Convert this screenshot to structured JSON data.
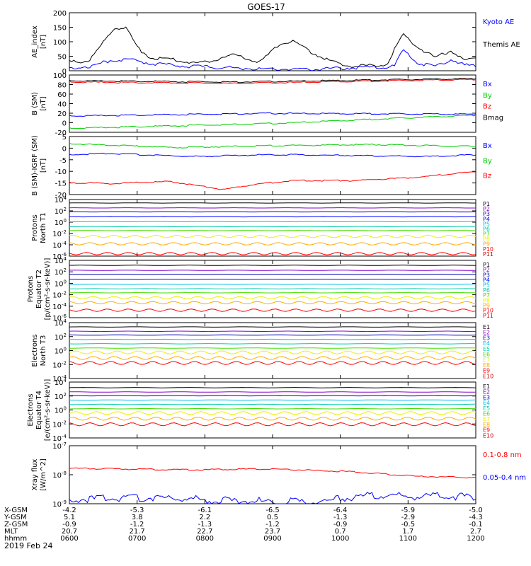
{
  "title": "GOES-17",
  "date": "2019 Feb 24",
  "colors": {
    "blue": "#0000ff",
    "green": "#00cc00",
    "red": "#ff0000",
    "black": "#000000",
    "purple": "#8800cc",
    "darkblue": "#0000aa",
    "cyan": "#00bbee",
    "teal": "#00ccaa",
    "lime": "#44dd00",
    "yellow": "#eeee00",
    "orange": "#ffaa00",
    "darkred": "#cc0000"
  },
  "chart_data": [
    {
      "type": "line",
      "id": "ae",
      "ylabel": [
        "AE_index",
        "[nT]"
      ],
      "yticks": [
        "200",
        "150",
        "100",
        "50",
        "0"
      ],
      "ylim": [
        0,
        200
      ],
      "legend": [
        {
          "label": "Kyoto AE",
          "color": "#0000ff"
        },
        {
          "label": "Themis AE",
          "color": "#000000"
        }
      ],
      "series": [
        {
          "name": "Themis AE",
          "color": "#000000",
          "x": [
            0,
            0.05,
            0.09,
            0.11,
            0.14,
            0.17,
            0.2,
            0.25,
            0.32,
            0.4,
            0.47,
            0.52,
            0.55,
            0.6,
            0.65,
            0.7,
            0.78,
            0.82,
            0.86,
            0.9,
            0.94,
            0.97,
            1.0
          ],
          "y": [
            30,
            35,
            110,
            150,
            145,
            75,
            45,
            40,
            25,
            55,
            30,
            95,
            100,
            60,
            30,
            15,
            20,
            125,
            80,
            45,
            70,
            35,
            40
          ]
        },
        {
          "name": "Kyoto AE",
          "color": "#0000ff",
          "x": [
            0,
            0.05,
            0.1,
            0.14,
            0.2,
            0.3,
            0.4,
            0.5,
            0.6,
            0.7,
            0.8,
            0.82,
            0.86,
            0.9,
            0.94,
            0.97,
            1.0
          ],
          "y": [
            10,
            15,
            35,
            40,
            25,
            15,
            10,
            5,
            5,
            10,
            15,
            70,
            25,
            15,
            40,
            20,
            15
          ]
        }
      ]
    },
    {
      "type": "line",
      "id": "bsm",
      "ylabel": [
        "B (SM)",
        "[nT]"
      ],
      "yticks": [
        "100",
        "80",
        "60",
        "40",
        "20",
        "0",
        "-20"
      ],
      "ylim": [
        -25,
        105
      ],
      "legend": [
        {
          "label": "Bx",
          "color": "#0000ff"
        },
        {
          "label": "By",
          "color": "#00cc00"
        },
        {
          "label": "Bz",
          "color": "#ff0000"
        },
        {
          "label": "Bmag",
          "color": "#000000"
        }
      ],
      "series": [
        {
          "name": "Bmag",
          "color": "#000000",
          "x": [
            0,
            0.4,
            1.0
          ],
          "y": [
            92,
            89,
            97
          ]
        },
        {
          "name": "Bz",
          "color": "#ff0000",
          "x": [
            0,
            0.4,
            1.0
          ],
          "y": [
            89,
            86,
            95
          ]
        },
        {
          "name": "Bx",
          "color": "#0000ff",
          "x": [
            0,
            0.5,
            1.0
          ],
          "y": [
            12,
            18,
            16
          ]
        },
        {
          "name": "By",
          "color": "#00cc00",
          "x": [
            0,
            0.5,
            1.0
          ],
          "y": [
            -16,
            -5,
            14
          ]
        }
      ]
    },
    {
      "type": "line",
      "id": "bigrf",
      "ylabel": [
        "B (SM)-IGRF (SM)",
        "[nT]"
      ],
      "yticks": [
        "5",
        "0",
        "-5",
        "-10",
        "-15",
        "-20"
      ],
      "ylim": [
        -22,
        7
      ],
      "legend": [
        {
          "label": "Bx",
          "color": "#0000ff"
        },
        {
          "label": "By",
          "color": "#00cc00"
        },
        {
          "label": "Bz",
          "color": "#ff0000"
        }
      ],
      "series": [
        {
          "name": "By",
          "color": "#00cc00",
          "x": [
            0,
            0.25,
            0.5,
            0.75,
            1.0
          ],
          "y": [
            3.5,
            1.5,
            2.5,
            3,
            2
          ]
        },
        {
          "name": "Bx",
          "color": "#0000ff",
          "x": [
            0,
            0.1,
            0.3,
            0.5,
            0.7,
            0.9,
            1.0
          ],
          "y": [
            -2,
            -1.5,
            -3,
            -2,
            -2.5,
            -3,
            -2
          ]
        },
        {
          "name": "Bz",
          "color": "#ff0000",
          "x": [
            0,
            0.1,
            0.25,
            0.38,
            0.45,
            0.55,
            0.7,
            0.85,
            1.0
          ],
          "y": [
            -16,
            -16.5,
            -15.5,
            -19.5,
            -17,
            -15,
            -15,
            -13.5,
            -10.5
          ]
        }
      ]
    },
    {
      "type": "line",
      "id": "pn",
      "ylabel": [
        "Protons",
        "North T1"
      ],
      "yticks": [
        "10^4",
        "10^2",
        "10^0",
        "10^-2",
        "10^-4",
        "10^-6"
      ],
      "ylim": [
        -7,
        4.5
      ],
      "legend": [
        {
          "label": "P1",
          "color": "#000000"
        },
        {
          "label": "P2",
          "color": "#8800cc"
        },
        {
          "label": "P3",
          "color": "#0000aa"
        },
        {
          "label": "P4",
          "color": "#0000ff"
        },
        {
          "label": "P5",
          "color": "#00bbee"
        },
        {
          "label": "P6",
          "color": "#00ccaa"
        },
        {
          "label": "P7",
          "color": "#44dd00"
        },
        {
          "label": "P8",
          "color": "#eeee00"
        },
        {
          "label": "P9",
          "color": "#ffaa00"
        },
        {
          "label": "P10",
          "color": "#ff0000"
        },
        {
          "label": "P11",
          "color": "#cc0000"
        }
      ],
      "levels": [
        3.8,
        2.8,
        2.0,
        1.0,
        0.0,
        -1.0,
        -1.8,
        -3.0,
        -4.5,
        -6.5
      ]
    },
    {
      "type": "line",
      "id": "pe",
      "ylabel": [
        "Protons",
        "Equator T2",
        "[p/(cm²-s-sr-keV)]"
      ],
      "yticks": [
        "10^4",
        "10^2",
        "10^0",
        "10^-2",
        "10^-4",
        "10^-6"
      ],
      "ylim": [
        -7,
        4.5
      ],
      "legend": [
        {
          "label": "P1",
          "color": "#000000"
        },
        {
          "label": "P2",
          "color": "#8800cc"
        },
        {
          "label": "P3",
          "color": "#0000aa"
        },
        {
          "label": "P4",
          "color": "#0000ff"
        },
        {
          "label": "P5",
          "color": "#00bbee"
        },
        {
          "label": "P6",
          "color": "#00ccaa"
        },
        {
          "label": "P7",
          "color": "#44dd00"
        },
        {
          "label": "P8",
          "color": "#eeee00"
        },
        {
          "label": "P9",
          "color": "#ffaa00"
        },
        {
          "label": "P10",
          "color": "#ff0000"
        },
        {
          "label": "P11",
          "color": "#cc0000"
        }
      ],
      "levels": [
        3.5,
        2.5,
        1.7,
        0.7,
        -0.3,
        -1.2,
        -2.0,
        -3.0,
        -4.0,
        -5.5
      ]
    },
    {
      "type": "line",
      "id": "en",
      "ylabel": [
        "Electrons",
        "North T3"
      ],
      "yticks": [
        "10^4",
        "10^2",
        "10^0",
        "10^-2",
        "10^-4"
      ],
      "ylim": [
        -4.5,
        4.5
      ],
      "legend": [
        {
          "label": "E1",
          "color": "#000000"
        },
        {
          "label": "E2",
          "color": "#8800cc"
        },
        {
          "label": "E3",
          "color": "#0000aa"
        },
        {
          "label": "E4",
          "color": "#00bbee"
        },
        {
          "label": "E5",
          "color": "#00ccaa"
        },
        {
          "label": "E6",
          "color": "#44dd00"
        },
        {
          "label": "E7",
          "color": "#eeee00"
        },
        {
          "label": "E8",
          "color": "#ffaa00"
        },
        {
          "label": "E9",
          "color": "#ff0000"
        },
        {
          "label": "E10",
          "color": "#cc0000"
        }
      ],
      "levels": [
        3.8,
        3.1,
        2.5,
        1.8,
        1.1,
        0.4,
        -0.3,
        -1.2,
        -2.0
      ]
    },
    {
      "type": "line",
      "id": "ee",
      "ylabel": [
        "Electrons",
        "Equator T4",
        "[e/(cm²-s-sr-keV)]"
      ],
      "yticks": [
        "10^4",
        "10^2",
        "10^0",
        "10^-2",
        "10^-4"
      ],
      "ylim": [
        -4.5,
        4.5
      ],
      "legend": [
        {
          "label": "E1",
          "color": "#000000"
        },
        {
          "label": "E2",
          "color": "#8800cc"
        },
        {
          "label": "E3",
          "color": "#0000aa"
        },
        {
          "label": "E4",
          "color": "#00bbee"
        },
        {
          "label": "E5",
          "color": "#00ccaa"
        },
        {
          "label": "E6",
          "color": "#44dd00"
        },
        {
          "label": "E7",
          "color": "#eeee00"
        },
        {
          "label": "E8",
          "color": "#ffaa00"
        },
        {
          "label": "E9",
          "color": "#ff0000"
        },
        {
          "label": "E10",
          "color": "#cc0000"
        }
      ],
      "levels": [
        3.6,
        2.9,
        2.3,
        1.6,
        0.9,
        0.2,
        -0.5,
        -1.4,
        -2.3
      ]
    },
    {
      "type": "line",
      "id": "xray",
      "ylabel": [
        "Xray flux",
        "[W/m^2]"
      ],
      "yticks": [
        "10^-7",
        "10^-8",
        "10^-9"
      ],
      "ylim": [
        -9,
        -7
      ],
      "legend": [
        {
          "label": "0.1-0.8 nm",
          "color": "#ff0000"
        },
        {
          "label": "0.05-0.4 nm",
          "color": "#0000ff"
        }
      ],
      "series": [
        {
          "name": "0.1-0.8 nm",
          "color": "#ff0000",
          "x": [
            0,
            0.3,
            0.5,
            0.7,
            0.85,
            1.0
          ],
          "y": [
            -7.78,
            -7.83,
            -7.8,
            -7.9,
            -8.05,
            -8.1
          ]
        },
        {
          "name": "0.05-0.4 nm",
          "color": "#0000ff",
          "x": [
            0,
            0.2,
            0.4,
            0.6,
            0.75,
            0.85,
            1.0
          ],
          "y": [
            -8.85,
            -8.8,
            -8.9,
            -8.95,
            -8.7,
            -8.75,
            -8.75
          ]
        }
      ]
    }
  ],
  "x_axis": {
    "row_labels": [
      "X-GSM",
      "Y-GSM",
      "Z-GSM",
      "MLT",
      "hhmm"
    ],
    "columns": [
      [
        "-4.2",
        "5.1",
        "-0.9",
        "20.7",
        "0600"
      ],
      [
        "-5.3",
        "3.8",
        "-1.2",
        "21.7",
        "0700"
      ],
      [
        "-6.1",
        "2.2",
        "-1.3",
        "22.7",
        "0800"
      ],
      [
        "-6.5",
        "0.5",
        "-1.2",
        "23.7",
        "0900"
      ],
      [
        "-6.4",
        "-1.3",
        "-0.9",
        "0.7",
        "1000"
      ],
      [
        "-5.9",
        "-2.9",
        "-0.5",
        "1.7",
        "1100"
      ],
      [
        "-5.0",
        "-4.3",
        "-0.1",
        "2.7",
        "1200"
      ]
    ]
  }
}
